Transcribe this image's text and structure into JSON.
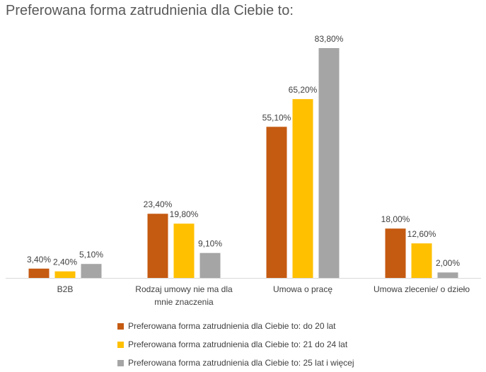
{
  "chart_data": {
    "type": "bar",
    "title": "Preferowana forma zatrudnienia dla Ciebie to:",
    "categories": [
      "B2B",
      "Rodzaj umowy nie ma dla mnie znaczenia",
      "Umowa o pracę",
      "Umowa zlecenie/ o dzieło"
    ],
    "category_lines": [
      [
        "B2B"
      ],
      [
        "Rodzaj umowy nie ma dla",
        "mnie znaczenia"
      ],
      [
        "Umowa o pracę"
      ],
      [
        "Umowa zlecenie/ o dzieło"
      ]
    ],
    "series": [
      {
        "name": "Preferowana forma zatrudnienia dla Ciebie to: do 20 lat",
        "values": [
          3.4,
          23.4,
          55.1,
          18.0
        ],
        "labels": [
          "3,40%",
          "23,40%",
          "55,10%",
          "18,00%"
        ],
        "color": "#C55A11"
      },
      {
        "name": "Preferowana forma zatrudnienia dla Ciebie to: 21 do 24 lat",
        "values": [
          2.4,
          19.8,
          65.2,
          12.6
        ],
        "labels": [
          "2,40%",
          "19,80%",
          "65,20%",
          "12,60%"
        ],
        "color": "#FFC000"
      },
      {
        "name": "Preferowana forma zatrudnienia dla Ciebie to: 25 lat i więcej",
        "values": [
          5.1,
          9.1,
          83.8,
          2.0
        ],
        "labels": [
          "5,10%",
          "9,10%",
          "83,80%",
          "2,00%"
        ],
        "color": "#A5A5A5"
      }
    ],
    "ylim": [
      0,
      83.8
    ],
    "grid": false,
    "legend_position": "bottom",
    "xlabel": "",
    "ylabel": ""
  }
}
